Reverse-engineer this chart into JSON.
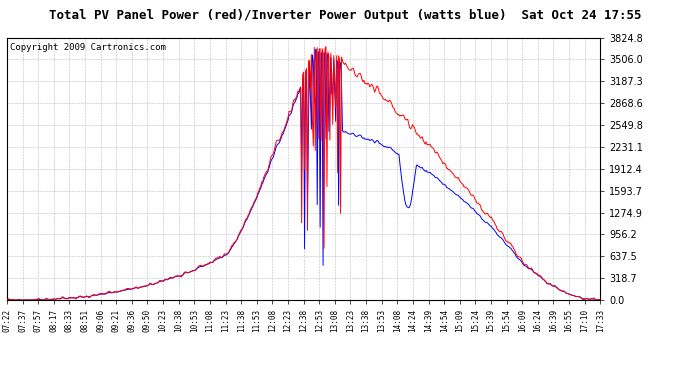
{
  "title": "Total PV Panel Power (red)/Inverter Power Output (watts blue)  Sat Oct 24 17:55",
  "copyright": "Copyright 2009 Cartronics.com",
  "ylabel_values": [
    0.0,
    318.7,
    637.5,
    956.2,
    1274.9,
    1593.7,
    1912.4,
    2231.1,
    2549.8,
    2868.6,
    3187.3,
    3506.0,
    3824.8
  ],
  "ymax": 3824.8,
  "x_tick_labels": [
    "07:22",
    "07:37",
    "07:57",
    "08:17",
    "08:33",
    "08:51",
    "09:06",
    "09:21",
    "09:36",
    "09:50",
    "10:23",
    "10:38",
    "10:53",
    "11:08",
    "11:23",
    "11:38",
    "11:53",
    "12:08",
    "12:23",
    "12:38",
    "12:53",
    "13:08",
    "13:23",
    "13:38",
    "13:53",
    "14:08",
    "14:24",
    "14:39",
    "14:54",
    "15:09",
    "15:24",
    "15:39",
    "15:54",
    "16:09",
    "16:24",
    "16:39",
    "16:55",
    "17:10",
    "17:33"
  ],
  "bg_color": "#ffffff",
  "grid_color": "#bbbbbb",
  "red_color": "#ff0000",
  "blue_color": "#0000ff",
  "title_fontsize": 9,
  "copyright_fontsize": 6.5
}
